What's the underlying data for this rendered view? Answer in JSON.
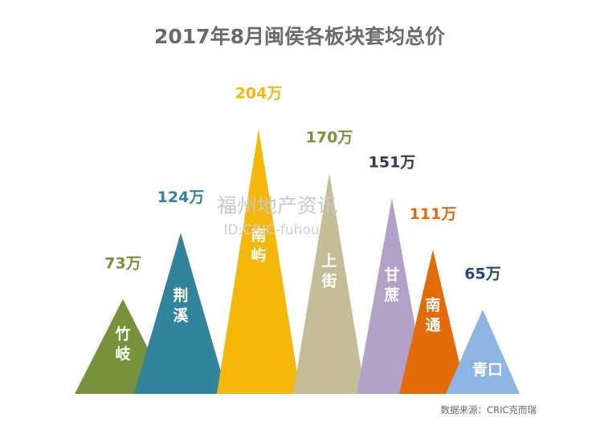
{
  "chart_data": {
    "type": "bar",
    "title": "2017年8月闽侯各板块套均总价",
    "unit": "万",
    "categories": [
      "竹岐",
      "荆溪",
      "南屿",
      "上街",
      "甘蔗",
      "南通",
      "青口"
    ],
    "values": [
      73,
      124,
      204,
      170,
      151,
      111,
      65
    ],
    "value_labels": [
      "73万",
      "124万",
      "204万",
      "170万",
      "151万",
      "111万",
      "65万"
    ],
    "colors": [
      "#77923b",
      "#31849b",
      "#f6b70b",
      "#c4bd97",
      "#b3a2c7",
      "#e36c0a",
      "#8eb4e3"
    ],
    "label_colors": [
      "#77923b",
      "#31849b",
      "#f6b70b",
      "#77933c",
      "#403152",
      "#e36c0a",
      "#1f497d"
    ]
  },
  "watermark": {
    "line1": "福州地产资讯",
    "line2": "ID:CRIC-fuhou"
  },
  "source_note": "数据来源：CRIC克而瑞"
}
